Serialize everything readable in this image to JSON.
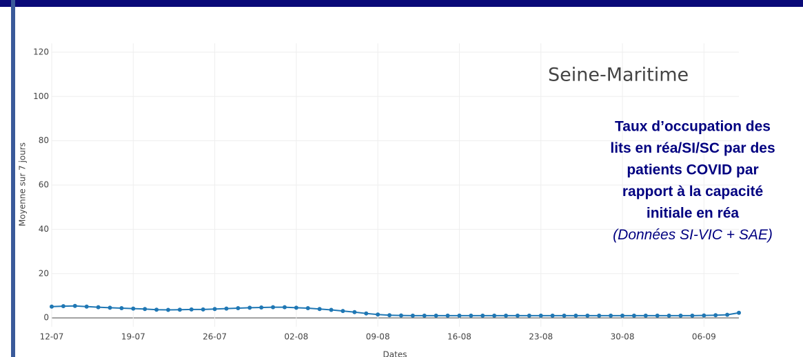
{
  "chart_data": {
    "type": "line",
    "title": "Seine-Maritime",
    "annotation": [
      "Taux d’occupation des",
      "lits en réa/SI/SC par des",
      "patients COVID par",
      "rapport à la capacité",
      "initiale en réa"
    ],
    "annotation_source": "(Données SI-VIC + SAE)",
    "x_label": "Dates",
    "y_label": "Moyenne sur 7 jours",
    "x": [
      "12-07",
      "13-07",
      "14-07",
      "15-07",
      "16-07",
      "17-07",
      "18-07",
      "19-07",
      "20-07",
      "21-07",
      "22-07",
      "23-07",
      "24-07",
      "25-07",
      "26-07",
      "27-07",
      "28-07",
      "29-07",
      "30-07",
      "31-07",
      "01-08",
      "02-08",
      "03-08",
      "04-08",
      "05-08",
      "06-08",
      "07-08",
      "08-08",
      "09-08",
      "10-08",
      "11-08",
      "12-08",
      "13-08",
      "14-08",
      "15-08",
      "16-08",
      "17-08",
      "18-08",
      "19-08",
      "20-08",
      "21-08",
      "22-08",
      "23-08",
      "24-08",
      "25-08",
      "26-08",
      "27-08",
      "28-08",
      "29-08",
      "30-08",
      "31-08",
      "01-09",
      "02-09",
      "03-09",
      "04-09",
      "05-09",
      "06-09",
      "07-09",
      "08-09",
      "09-09"
    ],
    "series": [
      {
        "color": "#1f77b4",
        "values": [
          5.1,
          5.3,
          5.4,
          5.1,
          4.8,
          4.6,
          4.4,
          4.2,
          4.0,
          3.7,
          3.6,
          3.7,
          3.8,
          3.8,
          4.0,
          4.2,
          4.4,
          4.6,
          4.7,
          4.8,
          4.8,
          4.6,
          4.4,
          4.0,
          3.6,
          3.1,
          2.6,
          2.0,
          1.5,
          1.2,
          1.1,
          1.0,
          1.0,
          1.0,
          1.0,
          1.0,
          1.0,
          1.0,
          1.0,
          1.0,
          1.0,
          1.0,
          1.0,
          1.0,
          1.0,
          1.0,
          1.0,
          1.0,
          1.0,
          1.0,
          1.0,
          1.0,
          1.0,
          1.0,
          1.0,
          1.0,
          1.1,
          1.2,
          1.4,
          2.3
        ]
      }
    ],
    "xticks": [
      "12-07",
      "19-07",
      "26-07",
      "02-08",
      "09-08",
      "16-08",
      "23-08",
      "30-08",
      "06-09"
    ],
    "ylim": [
      -4,
      124
    ],
    "yticks": [
      0,
      20,
      40,
      60,
      80,
      100,
      120
    ],
    "grid": true
  }
}
